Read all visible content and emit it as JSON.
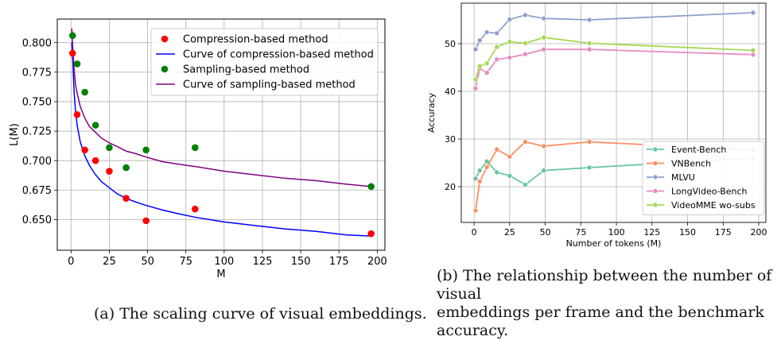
{
  "captions": {
    "a": "(a) The scaling curve of visual embeddings.",
    "b": "(b) The relationship between the number of visual\nembeddings per frame and the benchmark\naccuracy."
  },
  "chart_data": [
    {
      "type": "scatter",
      "title": "",
      "xlabel": "M",
      "ylabel": "L(M)",
      "xlim": [
        -9,
        205
      ],
      "ylim": [
        0.624,
        0.82
      ],
      "xticks": [
        0,
        25,
        50,
        75,
        100,
        125,
        150,
        175,
        200
      ],
      "xtick_labels": [
        "0",
        "25",
        "50",
        "75",
        "100",
        "125",
        "150",
        "175",
        "200"
      ],
      "yticks": [
        0.65,
        0.675,
        0.7,
        0.725,
        0.75,
        0.775,
        0.8
      ],
      "ytick_labels": [
        "0.650",
        "0.675",
        "0.700",
        "0.725",
        "0.750",
        "0.775",
        "0.800"
      ],
      "grid": true,
      "legend_position": "top-right",
      "series": [
        {
          "name": "Compression-based method",
          "kind": "scatter",
          "color": "#ff0000",
          "x": [
            1,
            4,
            9,
            16,
            25,
            36,
            49,
            81,
            196
          ],
          "y": [
            0.791,
            0.739,
            0.709,
            0.7,
            0.691,
            0.668,
            0.649,
            0.659,
            0.638
          ]
        },
        {
          "name": "Curve of compression-based method",
          "kind": "line",
          "color": "#0000ff",
          "x": [
            0.5,
            1,
            2,
            3,
            4,
            6,
            9,
            12,
            16,
            20,
            25,
            30,
            36,
            42,
            49,
            60,
            70,
            81,
            100,
            120,
            140,
            160,
            180,
            196
          ],
          "y": [
            0.8,
            0.789,
            0.758,
            0.741,
            0.73,
            0.716,
            0.704,
            0.696,
            0.688,
            0.682,
            0.677,
            0.672,
            0.668,
            0.665,
            0.662,
            0.658,
            0.655,
            0.652,
            0.648,
            0.645,
            0.642,
            0.64,
            0.637,
            0.636
          ]
        },
        {
          "name": "Sampling-based method",
          "kind": "scatter",
          "color": "#008000",
          "x": [
            1,
            4,
            9,
            16,
            25,
            36,
            49,
            81,
            196
          ],
          "y": [
            0.806,
            0.782,
            0.758,
            0.73,
            0.711,
            0.694,
            0.709,
            0.711,
            0.678
          ]
        },
        {
          "name": "Curve of sampling-based method",
          "kind": "line",
          "color": "#800080",
          "x": [
            0.5,
            1,
            2,
            3,
            4,
            6,
            9,
            12,
            16,
            20,
            25,
            30,
            36,
            42,
            49,
            60,
            70,
            81,
            100,
            120,
            140,
            160,
            180,
            196
          ],
          "y": [
            0.812,
            0.799,
            0.777,
            0.764,
            0.757,
            0.746,
            0.736,
            0.729,
            0.724,
            0.719,
            0.715,
            0.712,
            0.708,
            0.706,
            0.703,
            0.699,
            0.697,
            0.695,
            0.691,
            0.688,
            0.685,
            0.683,
            0.68,
            0.678
          ]
        }
      ]
    },
    {
      "type": "line",
      "title": "",
      "xlabel": "Number of tokens (M)",
      "ylabel": "Accuracy",
      "xlim": [
        -9,
        205
      ],
      "ylim": [
        12.5,
        58.5
      ],
      "xticks": [
        0,
        25,
        50,
        75,
        100,
        125,
        150,
        175,
        200
      ],
      "xtick_labels": [
        "0",
        "25",
        "50",
        "75",
        "100",
        "125",
        "150",
        "175",
        "200"
      ],
      "yticks": [
        20,
        30,
        40,
        50
      ],
      "ytick_labels": [
        "20",
        "30",
        "40",
        "50"
      ],
      "grid": true,
      "legend_position": "bottom-right",
      "x": [
        1,
        4,
        9,
        16,
        25,
        36,
        49,
        81,
        196
      ],
      "series": [
        {
          "name": "Event-Bench",
          "color": "#66c2a5",
          "values": [
            21.7,
            23.4,
            25.3,
            23.0,
            22.3,
            20.4,
            23.4,
            24.0,
            26.0
          ]
        },
        {
          "name": "VNBench",
          "color": "#fc8d62",
          "values": [
            15.0,
            21.1,
            24.1,
            27.8,
            26.3,
            29.4,
            28.5,
            29.4,
            27.7
          ]
        },
        {
          "name": "MLVU",
          "color": "#8da0cb",
          "values": [
            48.8,
            50.7,
            52.4,
            52.2,
            55.1,
            56.0,
            55.3,
            55.0,
            56.5
          ]
        },
        {
          "name": "LongVideo-Bench",
          "color": "#e78ac3",
          "values": [
            40.6,
            44.8,
            43.9,
            46.7,
            47.1,
            47.8,
            48.8,
            48.8,
            47.7
          ]
        },
        {
          "name": "VideoMME wo-subs",
          "color": "#a6d854",
          "values": [
            42.5,
            45.3,
            45.9,
            49.3,
            50.4,
            50.1,
            51.3,
            50.1,
            48.6
          ]
        }
      ]
    }
  ]
}
